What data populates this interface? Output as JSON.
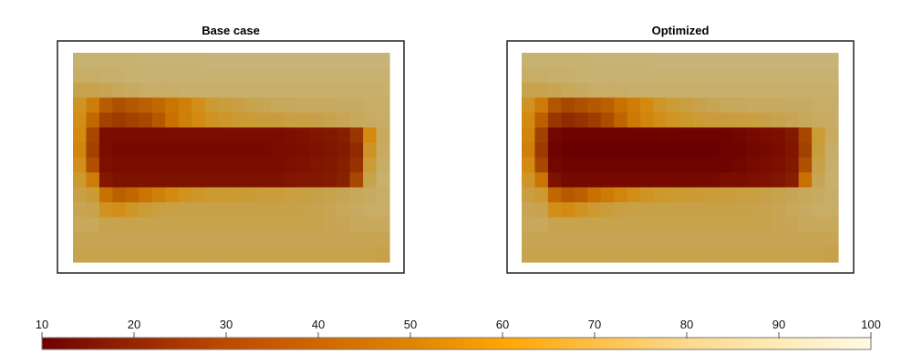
{
  "chart_data": [
    {
      "type": "heatmap",
      "title": "Base case",
      "grid": false,
      "values": [
        [
          80,
          80,
          80,
          80,
          80,
          81,
          81,
          81,
          81,
          81,
          82,
          82,
          82,
          82,
          82,
          82,
          82,
          82,
          82,
          82,
          82,
          82,
          82,
          82
        ],
        [
          76,
          76,
          78,
          78,
          80,
          80,
          80,
          80,
          80,
          80,
          80,
          80,
          80,
          80,
          80,
          80,
          80,
          80,
          80,
          80,
          80,
          80,
          80,
          80
        ],
        [
          68,
          68,
          70,
          72,
          74,
          76,
          76,
          76,
          78,
          78,
          78,
          78,
          78,
          78,
          78,
          78,
          78,
          78,
          78,
          78,
          78,
          78,
          78,
          78
        ],
        [
          55,
          45,
          35,
          32,
          34,
          36,
          38,
          42,
          46,
          52,
          58,
          62,
          65,
          68,
          70,
          72,
          72,
          74,
          74,
          74,
          75,
          75,
          76,
          76
        ],
        [
          52,
          38,
          28,
          26,
          28,
          30,
          34,
          40,
          46,
          50,
          54,
          56,
          58,
          60,
          62,
          62,
          64,
          64,
          66,
          68,
          70,
          72,
          74,
          76
        ],
        [
          50,
          30,
          12,
          12,
          12,
          12,
          12,
          12,
          12,
          12,
          12,
          12,
          12,
          12,
          12,
          12,
          13,
          14,
          15,
          16,
          18,
          25,
          50,
          72
        ],
        [
          48,
          28,
          12,
          11,
          11,
          11,
          11,
          11,
          11,
          11,
          11,
          11,
          11,
          11,
          11,
          12,
          12,
          13,
          14,
          15,
          17,
          22,
          55,
          74
        ],
        [
          52,
          32,
          13,
          12,
          12,
          12,
          12,
          12,
          12,
          12,
          12,
          12,
          12,
          12,
          12,
          12,
          13,
          14,
          15,
          16,
          18,
          24,
          60,
          76
        ],
        [
          58,
          45,
          16,
          14,
          14,
          14,
          14,
          14,
          14,
          14,
          14,
          14,
          14,
          14,
          14,
          14,
          15,
          16,
          16,
          17,
          19,
          30,
          68,
          78
        ],
        [
          66,
          60,
          40,
          36,
          38,
          42,
          46,
          50,
          54,
          56,
          58,
          58,
          60,
          60,
          62,
          62,
          64,
          64,
          66,
          68,
          70,
          72,
          74,
          76
        ],
        [
          70,
          68,
          54,
          52,
          56,
          60,
          64,
          66,
          66,
          66,
          66,
          66,
          66,
          66,
          66,
          66,
          66,
          67,
          68,
          70,
          72,
          74,
          76,
          76
        ],
        [
          72,
          72,
          68,
          68,
          68,
          68,
          68,
          68,
          68,
          68,
          68,
          68,
          68,
          68,
          68,
          68,
          68,
          68,
          68,
          70,
          70,
          72,
          72,
          72
        ],
        [
          70,
          70,
          70,
          70,
          70,
          70,
          70,
          70,
          70,
          70,
          70,
          70,
          70,
          70,
          70,
          70,
          70,
          70,
          70,
          70,
          70,
          70,
          70,
          70
        ],
        [
          68,
          68,
          68,
          68,
          68,
          68,
          68,
          68,
          68,
          68,
          68,
          68,
          68,
          68,
          68,
          68,
          68,
          68,
          68,
          68,
          68,
          68,
          68,
          66
        ]
      ]
    },
    {
      "type": "heatmap",
      "title": "Optimized",
      "grid": false,
      "values": [
        [
          80,
          80,
          80,
          80,
          80,
          81,
          81,
          81,
          81,
          81,
          82,
          82,
          82,
          82,
          82,
          82,
          82,
          82,
          82,
          82,
          82,
          82,
          82,
          82
        ],
        [
          76,
          76,
          78,
          78,
          80,
          80,
          80,
          80,
          80,
          80,
          80,
          80,
          80,
          80,
          80,
          80,
          80,
          80,
          80,
          80,
          80,
          80,
          80,
          80
        ],
        [
          68,
          68,
          70,
          72,
          74,
          76,
          76,
          76,
          78,
          78,
          78,
          78,
          78,
          78,
          78,
          78,
          78,
          78,
          78,
          78,
          78,
          78,
          78,
          78
        ],
        [
          54,
          44,
          33,
          30,
          32,
          34,
          36,
          40,
          45,
          50,
          56,
          60,
          64,
          67,
          70,
          72,
          72,
          74,
          74,
          74,
          75,
          75,
          76,
          76
        ],
        [
          50,
          36,
          25,
          22,
          24,
          27,
          31,
          37,
          43,
          48,
          52,
          55,
          57,
          59,
          61,
          62,
          63,
          64,
          66,
          68,
          70,
          72,
          74,
          76
        ],
        [
          48,
          28,
          10,
          9,
          9,
          9,
          9,
          9,
          9,
          9,
          9,
          9,
          9,
          9,
          9,
          9,
          10,
          11,
          12,
          13,
          16,
          30,
          60,
          74
        ],
        [
          46,
          26,
          9,
          8,
          8,
          8,
          8,
          8,
          8,
          8,
          8,
          8,
          8,
          8,
          8,
          9,
          9,
          10,
          11,
          12,
          15,
          28,
          62,
          76
        ],
        [
          50,
          30,
          10,
          9,
          9,
          9,
          9,
          9,
          9,
          9,
          9,
          9,
          9,
          9,
          9,
          9,
          10,
          11,
          12,
          13,
          16,
          32,
          66,
          77
        ],
        [
          56,
          42,
          14,
          11,
          11,
          11,
          11,
          11,
          11,
          11,
          11,
          11,
          11,
          11,
          11,
          12,
          12,
          13,
          14,
          15,
          18,
          40,
          70,
          78
        ],
        [
          64,
          58,
          38,
          34,
          36,
          40,
          44,
          48,
          52,
          55,
          57,
          58,
          59,
          60,
          61,
          62,
          63,
          64,
          66,
          68,
          70,
          72,
          74,
          76
        ],
        [
          70,
          68,
          52,
          50,
          54,
          58,
          62,
          65,
          66,
          66,
          66,
          66,
          66,
          66,
          66,
          66,
          66,
          67,
          68,
          70,
          72,
          74,
          76,
          76
        ],
        [
          72,
          72,
          68,
          68,
          68,
          68,
          68,
          68,
          68,
          68,
          68,
          68,
          68,
          68,
          68,
          68,
          68,
          68,
          68,
          70,
          70,
          72,
          72,
          72
        ],
        [
          70,
          70,
          70,
          70,
          70,
          70,
          70,
          70,
          70,
          70,
          70,
          70,
          70,
          70,
          70,
          70,
          70,
          70,
          70,
          70,
          70,
          70,
          70,
          70
        ],
        [
          68,
          68,
          68,
          68,
          68,
          68,
          68,
          68,
          68,
          68,
          68,
          68,
          68,
          68,
          68,
          68,
          68,
          68,
          68,
          68,
          68,
          68,
          68,
          66
        ]
      ]
    }
  ],
  "colorbar": {
    "range": [
      10,
      100
    ],
    "ticks": [
      "10",
      "20",
      "30",
      "40",
      "50",
      "60",
      "70",
      "80",
      "90",
      "100"
    ],
    "colors": {
      "10": "#6e0000",
      "30": "#bf4a00",
      "50": "#e08400",
      "60": "#ffa500",
      "80": "#fdd98c",
      "100": "#fffbe2"
    }
  }
}
